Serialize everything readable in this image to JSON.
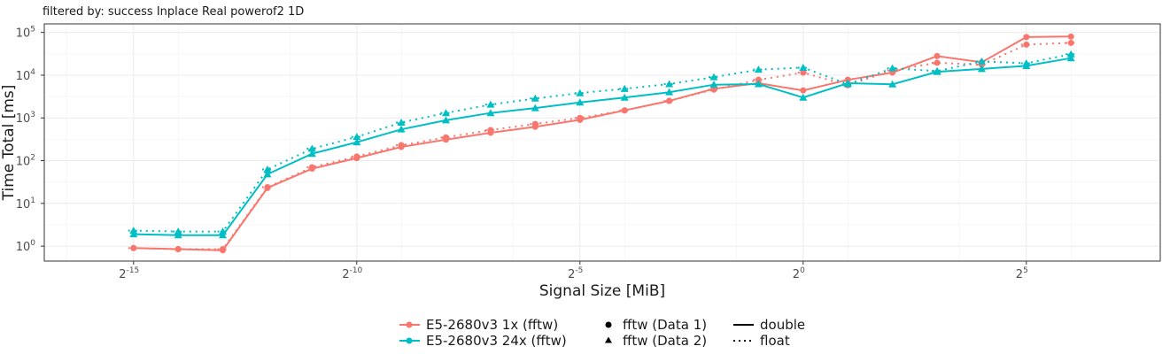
{
  "chart_data": {
    "type": "line",
    "subtitle": "filtered by: success Inplace Real powerof2 1D",
    "xlabel": "Signal Size [MiB]",
    "ylabel": "Time Total [ms]",
    "x_scale": "log2",
    "y_scale": "log10",
    "xlim_log2": [
      -17,
      8
    ],
    "ylim_log10": [
      -0.35,
      5.2
    ],
    "x_ticks": [
      {
        "base": "2",
        "exp": "-15",
        "value_log2": -15
      },
      {
        "base": "2",
        "exp": "-10",
        "value_log2": -10
      },
      {
        "base": "2",
        "exp": "-5",
        "value_log2": -5
      },
      {
        "base": "2",
        "exp": "0",
        "value_log2": 0
      },
      {
        "base": "2",
        "exp": "5",
        "value_log2": 5
      }
    ],
    "y_ticks": [
      {
        "base": "10",
        "exp": "0",
        "value_log10": 0
      },
      {
        "base": "10",
        "exp": "1",
        "value_log10": 1
      },
      {
        "base": "10",
        "exp": "2",
        "value_log10": 2
      },
      {
        "base": "10",
        "exp": "3",
        "value_log10": 3
      },
      {
        "base": "10",
        "exp": "4",
        "value_log10": 4
      },
      {
        "base": "10",
        "exp": "5",
        "value_log10": 5
      }
    ],
    "grid": true,
    "legend_position": "bottom",
    "x": [
      3.05e-05,
      6.1e-05,
      0.000122,
      0.000244,
      0.000488,
      0.000977,
      0.00195,
      0.0039,
      0.0078,
      0.0156,
      0.03125,
      0.0625,
      0.125,
      0.25,
      0.5,
      1,
      2,
      4,
      8,
      16,
      32,
      64
    ],
    "series": [
      {
        "name": "E5-2680v3 1x (fftw)",
        "color": "#F8766D",
        "marker": "circle",
        "linetype": "solid",
        "values": [
          0.9,
          0.85,
          0.8,
          23,
          65,
          115,
          210,
          310,
          450,
          620,
          900,
          1500,
          2500,
          4800,
          6500,
          4400,
          7800,
          11500,
          28000,
          20000,
          78000,
          80000
        ]
      },
      {
        "name": "E5-2680v3 1x (fftw)",
        "color": "#F8766D",
        "marker": "circle",
        "linetype": "dotted",
        "values": [
          0.9,
          0.85,
          0.85,
          24,
          70,
          125,
          230,
          350,
          520,
          720,
          1000,
          1500,
          2500,
          4600,
          7800,
          11500,
          5800,
          13000,
          19500,
          17500,
          52000,
          57000
        ]
      },
      {
        "name": "E5-2680v3 24x (fftw)",
        "color": "#00BFC4",
        "marker": "triangle",
        "linetype": "solid",
        "values": [
          1.9,
          1.8,
          1.8,
          48,
          145,
          270,
          540,
          880,
          1300,
          1700,
          2300,
          3000,
          4000,
          6000,
          6200,
          3000,
          6500,
          6100,
          12000,
          14000,
          16500,
          25000
        ]
      },
      {
        "name": "E5-2680v3 24x (fftw)",
        "color": "#00BFC4",
        "marker": "triangle",
        "linetype": "dotted",
        "values": [
          2.3,
          2.2,
          2.2,
          62,
          190,
          360,
          780,
          1300,
          2050,
          2850,
          3800,
          4800,
          6200,
          9000,
          13500,
          15000,
          6200,
          14500,
          12500,
          21000,
          19000,
          31000
        ]
      }
    ],
    "legend": {
      "colors": [
        {
          "label": "E5-2680v3 1x (fftw)",
          "color": "#F8766D"
        },
        {
          "label": "E5-2680v3 24x (fftw)",
          "color": "#00BFC4"
        }
      ],
      "shapes": [
        {
          "label": "fftw (Data 1)",
          "marker": "circle"
        },
        {
          "label": "fftw (Data 2)",
          "marker": "triangle"
        }
      ],
      "linetypes": [
        {
          "label": "double",
          "linetype": "solid"
        },
        {
          "label": "float",
          "linetype": "dotted"
        }
      ]
    }
  }
}
